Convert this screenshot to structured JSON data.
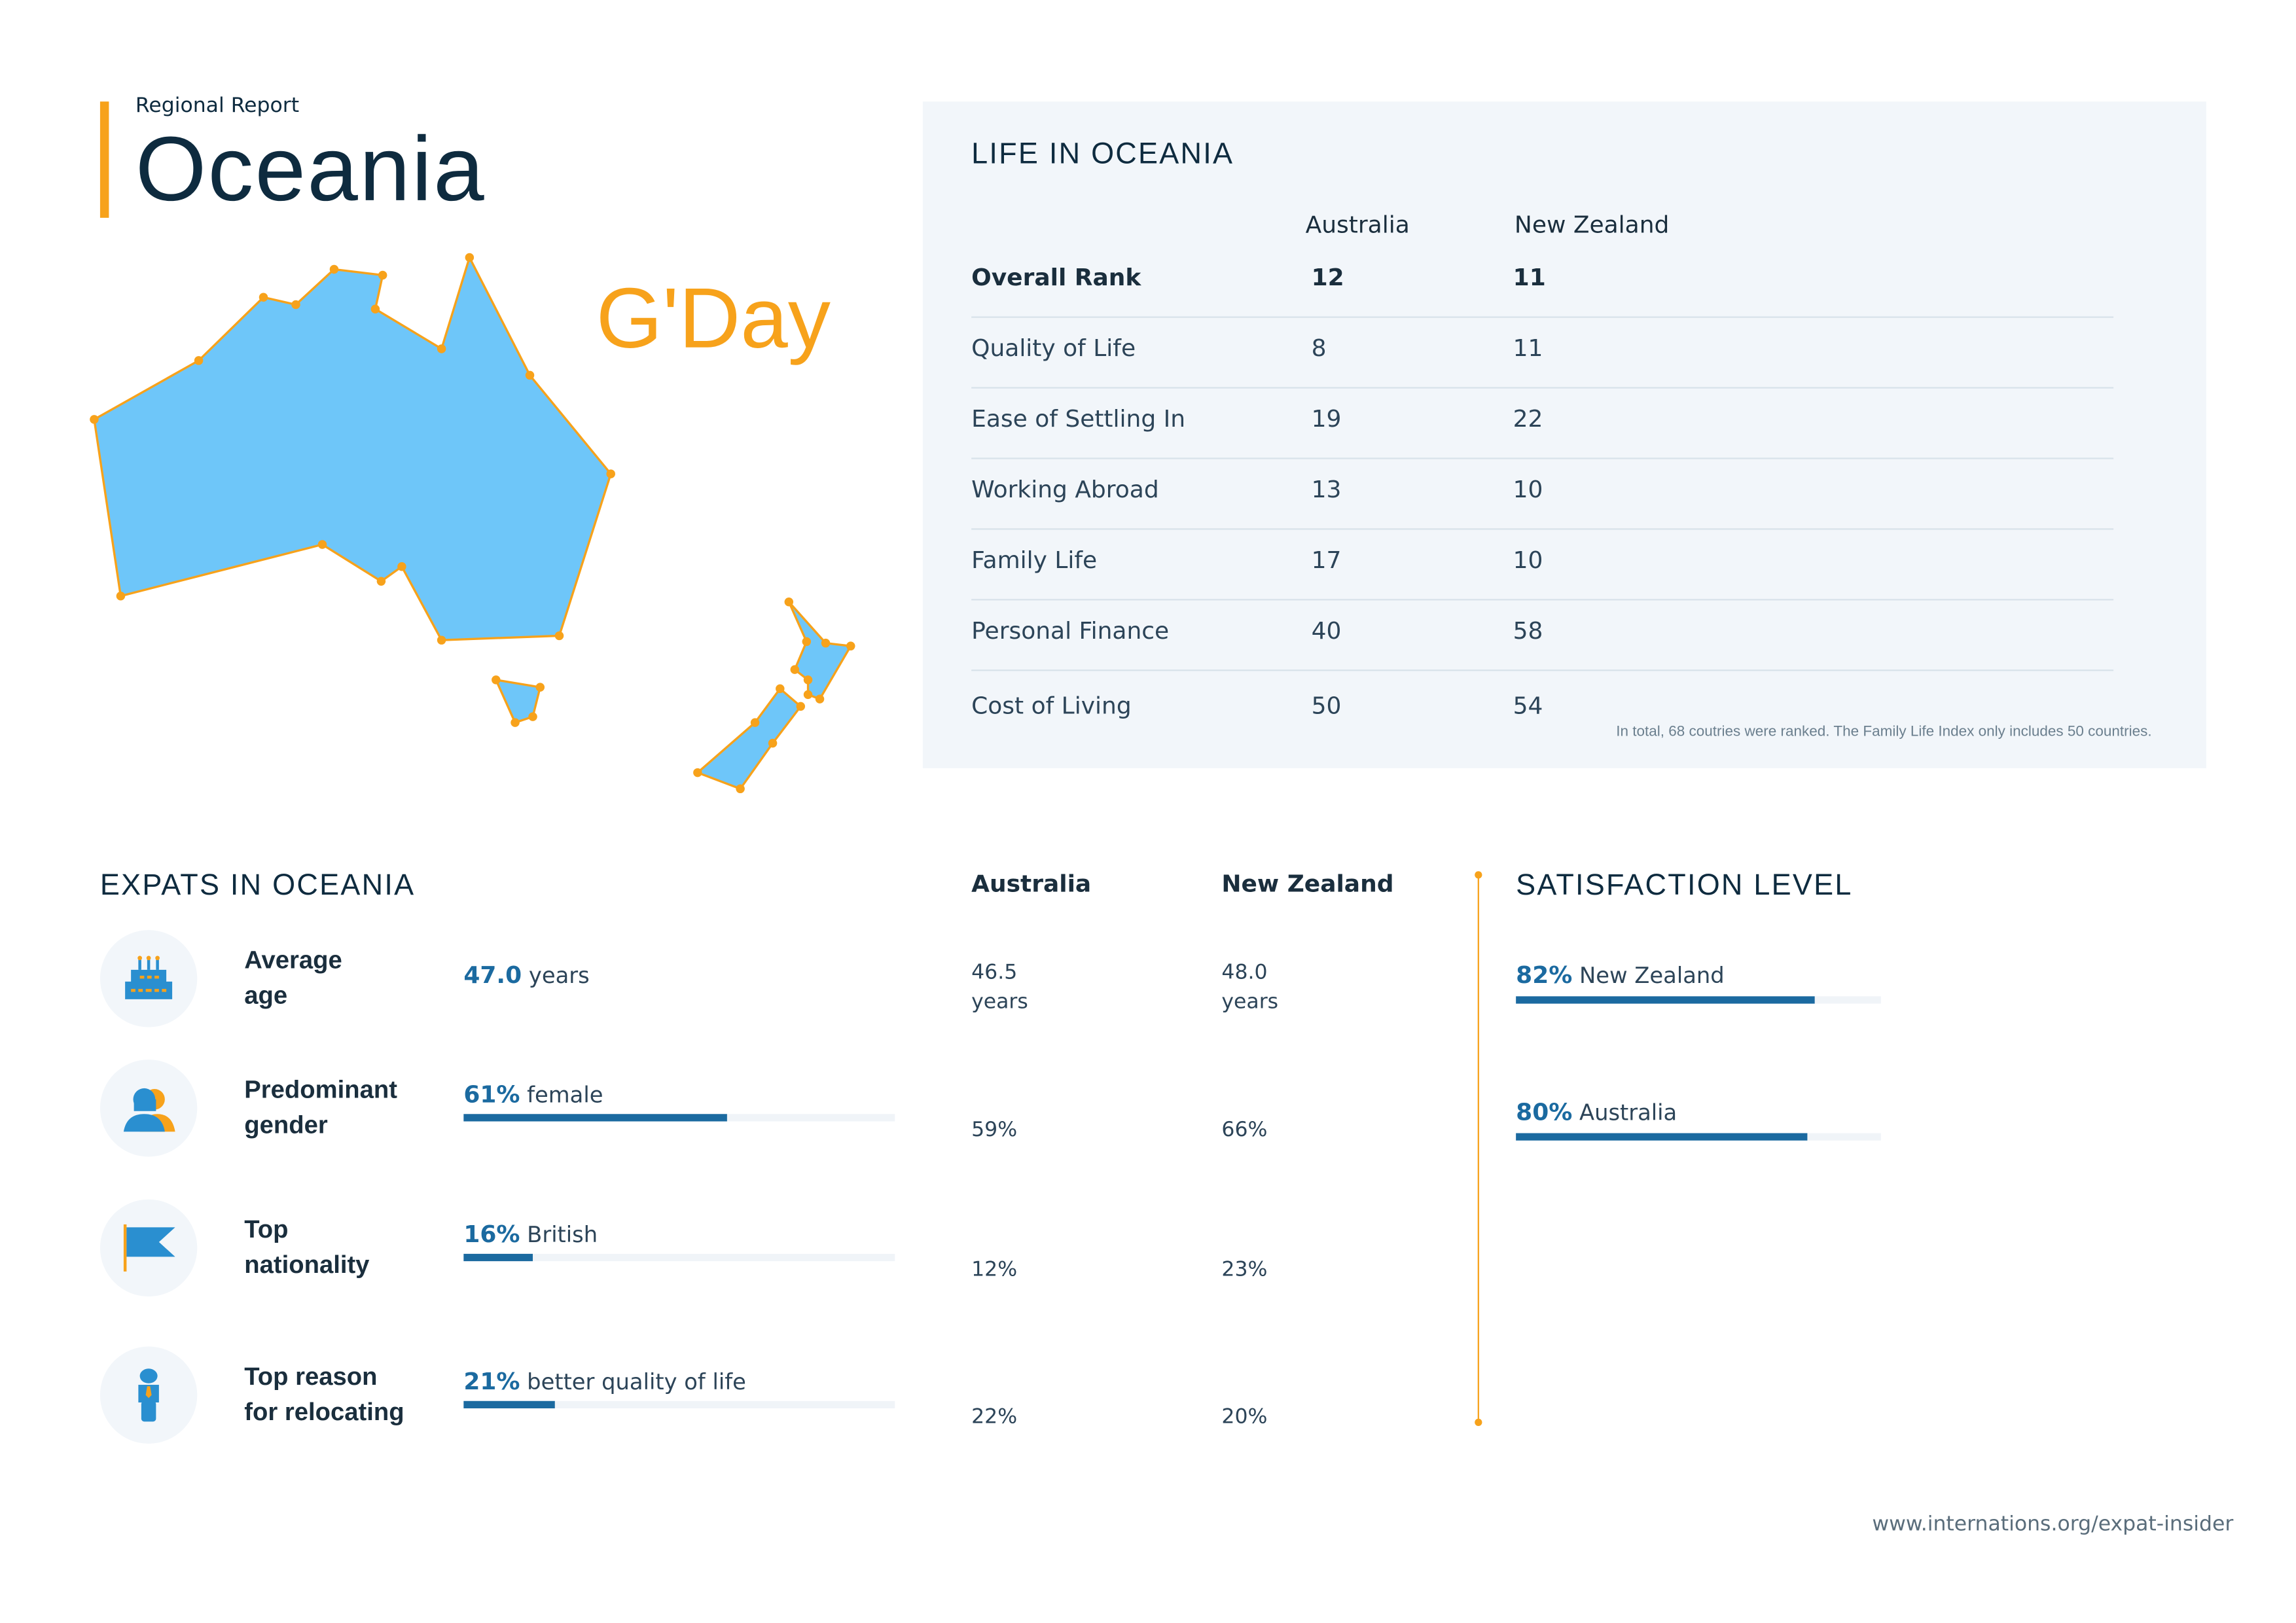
{
  "header": {
    "kicker": "Regional Report",
    "title": "Oceania",
    "greeting": "G'Day"
  },
  "colors": {
    "accent": "#f7a21b",
    "primary": "#1b6aa0",
    "map_fill": "#6ec6f9",
    "panel": "#f2f6fa"
  },
  "life": {
    "title": "LIFE IN OCEANIA",
    "columns": [
      "Australia",
      "New Zealand"
    ],
    "rows": [
      {
        "label": "Overall Rank",
        "au": "12",
        "nz": "11"
      },
      {
        "label": "Quality of Life",
        "au": "8",
        "nz": "11"
      },
      {
        "label": "Ease of Settling In",
        "au": "19",
        "nz": "22"
      },
      {
        "label": "Working Abroad",
        "au": "13",
        "nz": "10"
      },
      {
        "label": "Family Life",
        "au": "17",
        "nz": "10"
      },
      {
        "label": "Personal Finance",
        "au": "40",
        "nz": "58"
      },
      {
        "label": "Cost of Living",
        "au": "50",
        "nz": "54"
      }
    ],
    "note": "In total, 68 coutries were ranked. The Family Life Index only includes 50 countries."
  },
  "expats": {
    "title": "EXPATS IN OCEANIA",
    "columns": [
      "Australia",
      "New Zealand"
    ],
    "items": [
      {
        "icon": "cake-icon",
        "label1": "Average",
        "label2": "age",
        "value": "47.0",
        "unit": " years",
        "au": "46.5",
        "au2": "years",
        "nz": "48.0",
        "nz2": "years"
      },
      {
        "icon": "people-icon",
        "label1": "Predominant",
        "label2": "gender",
        "value": "61%",
        "unit": " female",
        "percent": 61,
        "au": "59%",
        "nz": "66%"
      },
      {
        "icon": "flag-icon",
        "label1": "Top",
        "label2": "nationality",
        "value": "16%",
        "unit": " British",
        "percent": 16,
        "au": "12%",
        "nz": "23%"
      },
      {
        "icon": "person-tie-icon",
        "label1": "Top reason",
        "label2": "for relocating",
        "value": "21%",
        "unit": " better quality of life",
        "percent": 21,
        "au": "22%",
        "nz": "20%"
      }
    ]
  },
  "satisfaction": {
    "title": "SATISFACTION LEVEL",
    "items": [
      {
        "value": "82%",
        "label": " New Zealand",
        "percent": 82
      },
      {
        "value": "80%",
        "label": " Australia",
        "percent": 80
      }
    ]
  },
  "footer": {
    "url": "www.internations.org/expat-insider"
  }
}
